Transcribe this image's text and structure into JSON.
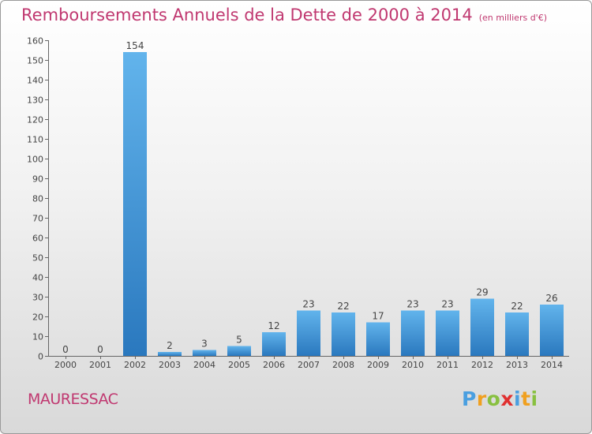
{
  "title": "Remboursements Annuels de la Dette de 2000 à 2014",
  "unit": "(en milliers d'€)",
  "commune": "MAURESSAC",
  "logo": {
    "letters": [
      "P",
      "r",
      "o",
      "x",
      "i",
      "t",
      "i"
    ],
    "colors": [
      "#4a9fe0",
      "#f0a020",
      "#88c040",
      "#e03030",
      "#4a9fe0",
      "#f0a020",
      "#88c040"
    ]
  },
  "colors": {
    "bar_top": "#62b4ec",
    "bar_bottom": "#2a78be",
    "accent": "#c03870"
  },
  "chart_data": {
    "type": "bar",
    "categories": [
      "2000",
      "2001",
      "2002",
      "2003",
      "2004",
      "2005",
      "2006",
      "2007",
      "2008",
      "2009",
      "2010",
      "2011",
      "2012",
      "2013",
      "2014"
    ],
    "values": [
      0,
      0,
      154,
      2,
      3,
      5,
      12,
      23,
      22,
      17,
      23,
      23,
      29,
      22,
      26
    ],
    "title": "Remboursements Annuels de la Dette de 2000 à 2014",
    "ylim": [
      0,
      160
    ],
    "yticks": [
      0,
      10,
      20,
      30,
      40,
      50,
      60,
      70,
      80,
      90,
      100,
      110,
      120,
      130,
      140,
      150,
      160
    ],
    "grid": false,
    "data_labels": true
  }
}
